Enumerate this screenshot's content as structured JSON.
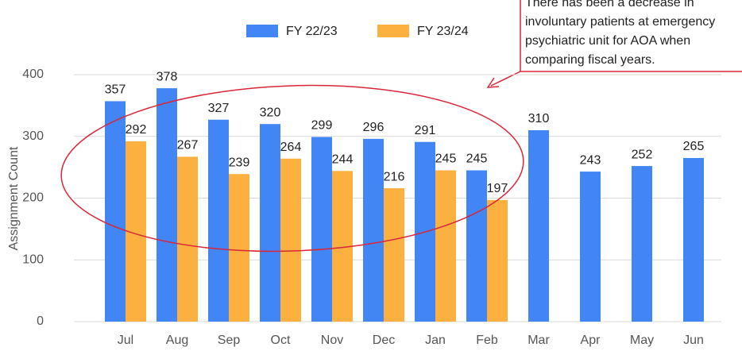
{
  "chart_data": {
    "type": "bar",
    "categories": [
      "Jul",
      "Aug",
      "Sep",
      "Oct",
      "Nov",
      "Dec",
      "Jan",
      "Feb",
      "Mar",
      "Apr",
      "May",
      "Jun"
    ],
    "series": [
      {
        "name": "FY 22/23",
        "color": "#4285f4",
        "values": [
          357,
          378,
          327,
          320,
          299,
          296,
          291,
          245,
          310,
          243,
          252,
          265
        ]
      },
      {
        "name": "FY 23/24",
        "color": "#fbb040",
        "values": [
          292,
          267,
          239,
          264,
          244,
          216,
          245,
          197,
          null,
          null,
          null,
          null
        ]
      }
    ],
    "y_label": "Assignment Count",
    "ylim": [
      0,
      400
    ],
    "yticks": [
      0,
      100,
      200,
      300,
      400
    ],
    "grid": true,
    "annotation": [
      "There has been a decrease in",
      "involuntary patients at emergency",
      "psychiatric unit for AOA when",
      "comparing fiscal years."
    ]
  }
}
